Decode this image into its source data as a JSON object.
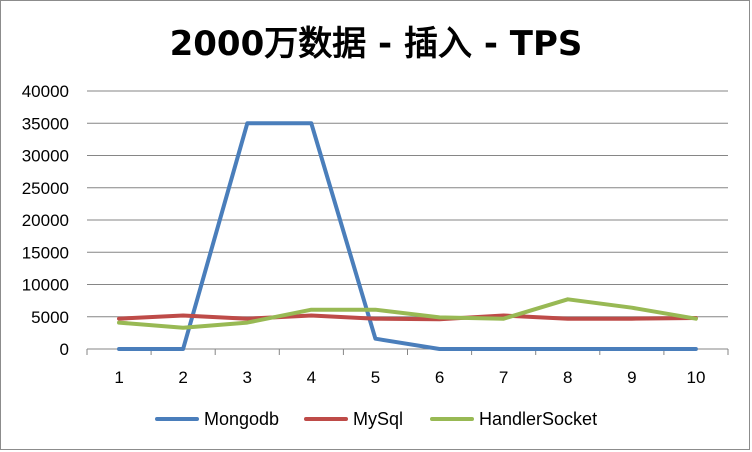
{
  "chart_data": {
    "type": "line",
    "title": "2000万数据 - 插入 - TPS",
    "xlabel": "",
    "ylabel": "",
    "categories": [
      "1",
      "2",
      "3",
      "4",
      "5",
      "6",
      "7",
      "8",
      "9",
      "10"
    ],
    "ylim": [
      0,
      40000
    ],
    "yticks": [
      "0",
      "5000",
      "10000",
      "15000",
      "20000",
      "25000",
      "30000",
      "35000",
      "40000"
    ],
    "grid": true,
    "legend_position": "bottom",
    "series": [
      {
        "name": "Mongodb",
        "color": "#4a7ebb",
        "values": [
          0,
          0,
          35000,
          35000,
          1600,
          0,
          0,
          0,
          0,
          0
        ]
      },
      {
        "name": "MySql",
        "color": "#be4b48",
        "values": [
          4700,
          5200,
          4700,
          5200,
          4700,
          4600,
          5200,
          4700,
          4700,
          4800
        ]
      },
      {
        "name": "HandlerSocket",
        "color": "#98b954",
        "values": [
          4100,
          3300,
          4100,
          6100,
          6100,
          4900,
          4700,
          7700,
          6400,
          4700
        ]
      }
    ]
  }
}
